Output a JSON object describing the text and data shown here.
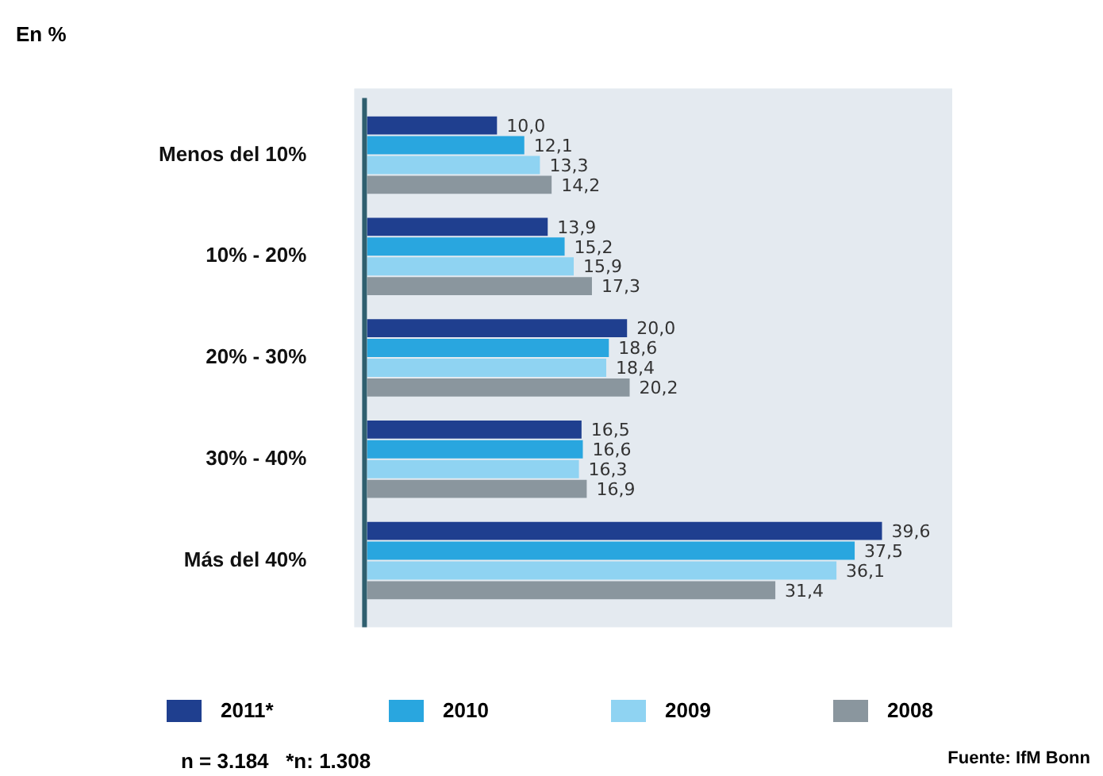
{
  "chart_data": {
    "type": "bar",
    "orientation": "horizontal",
    "categories": [
      "Menos del 10%",
      "10% - 20%",
      "20% - 30%",
      "30% - 40%",
      "Más del 40%"
    ],
    "series": [
      {
        "name": "2011*",
        "color": "#1f3f8f",
        "values": [
          10.0,
          13.9,
          20.0,
          16.5,
          39.6
        ],
        "value_labels": [
          "10,0",
          "13,9",
          "20,0",
          "16,5",
          "39,6"
        ]
      },
      {
        "name": "2010",
        "color": "#29a6df",
        "values": [
          12.1,
          15.2,
          18.6,
          16.6,
          37.5
        ],
        "value_labels": [
          "12,1",
          "15,2",
          "18,6",
          "16,6",
          "37,5"
        ]
      },
      {
        "name": "2009",
        "color": "#8fd3f2",
        "values": [
          13.3,
          15.9,
          18.4,
          16.3,
          36.1
        ],
        "value_labels": [
          "13,3",
          "15,9",
          "18,4",
          "16,3",
          "36,1"
        ]
      },
      {
        "name": "2008",
        "color": "#8a969e",
        "values": [
          14.2,
          17.3,
          20.2,
          16.9,
          31.4
        ],
        "value_labels": [
          "14,2",
          "17,3",
          "20,2",
          "16,9",
          "31,4"
        ]
      }
    ],
    "legend": "bottom",
    "annotations": [
      "En %",
      "n = 3.184   *n: 1.308",
      "Fuente: IfM Bonn"
    ]
  }
}
